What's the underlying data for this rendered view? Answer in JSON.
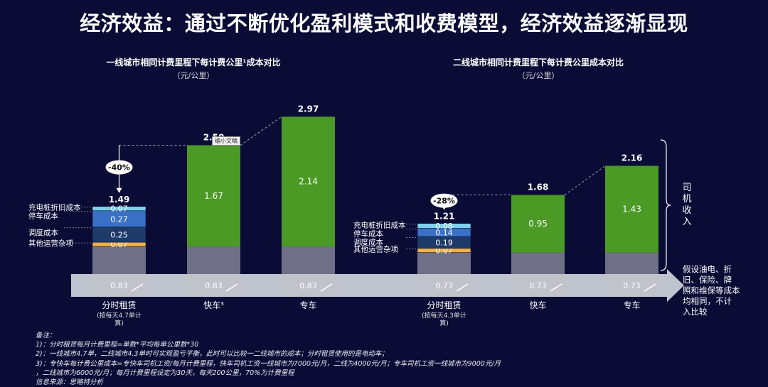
{
  "headline": "经济效益：通过不断优化盈利模式和收费模型，经济效益逐渐显现",
  "colors": {
    "background": "#0a0c36",
    "green": "#4a9a25",
    "charger": "#7ed0ee",
    "parking": "#3a70c6",
    "dispatch": "#1e3a68",
    "misc": "#f0b14a",
    "base": "#c2c2c8",
    "arrow": "#c9cdd6"
  },
  "tooltip": "缩小文稿",
  "chart_data": [
    {
      "type": "bar",
      "title": "一线城市相同计费里程下每计费公里¹成本对比",
      "unit_label": "（元/公里）",
      "ylim": [
        0,
        3.2
      ],
      "base_value": 0.83,
      "categories": [
        "分时租赁",
        "快车³",
        "专车"
      ],
      "category_subtitles": [
        "(按每天4.7单计",
        "算)"
      ],
      "stack_series": [
        {
          "name": "其他运营杂项",
          "value": 0.07,
          "color_key": "misc",
          "label": "0.07"
        },
        {
          "name": "调度成本",
          "value": 0.25,
          "color_key": "dispatch",
          "label": "0.25"
        },
        {
          "name": "停车成本",
          "value": 0.27,
          "color_key": "parking",
          "label": "0.27"
        },
        {
          "name": "充电桩折旧成本",
          "value": 0.07,
          "color_key": "charger",
          "label": "0.07"
        }
      ],
      "rental_total": 1.49,
      "rental_total_label": "1.49",
      "other_bars": [
        {
          "category": "快车³",
          "upper": 1.67,
          "upper_label": "1.67",
          "total": 2.5,
          "total_label": "2.50"
        },
        {
          "category": "专车",
          "upper": 2.14,
          "upper_label": "2.14",
          "total": 2.97,
          "total_label": "2.97"
        }
      ],
      "base_labels": [
        "0.83",
        "0.83",
        "0.83"
      ],
      "reduction_label": "-40%"
    },
    {
      "type": "bar",
      "title": "二线城市相同计费里程下每计费公里成本对比",
      "unit_label": "（元/公里）",
      "ylim": [
        0,
        2.4
      ],
      "base_value": 0.73,
      "categories": [
        "分时租赁",
        "快车",
        "专车"
      ],
      "category_subtitles": [
        "(按每天4.3单计",
        "算)"
      ],
      "stack_series": [
        {
          "name": "其他运营杂项",
          "value": 0.07,
          "color_key": "misc",
          "label": "0.07"
        },
        {
          "name": "调度成本",
          "value": 0.19,
          "color_key": "dispatch",
          "label": "0.19"
        },
        {
          "name": "停车成本",
          "value": 0.14,
          "color_key": "parking",
          "label": "0.14"
        },
        {
          "name": "充电桩折旧成本",
          "value": 0.08,
          "color_key": "charger",
          "label": "0.08"
        }
      ],
      "rental_total": 1.21,
      "rental_total_label": "1.21",
      "other_bars": [
        {
          "category": "快车",
          "upper": 0.95,
          "upper_label": "0.95",
          "total": 1.68,
          "total_label": "1.68"
        },
        {
          "category": "专车",
          "upper": 1.43,
          "upper_label": "1.43",
          "total": 2.16,
          "total_label": "2.16"
        }
      ],
      "base_labels": [
        "0.73",
        "0.73",
        "0.73"
      ],
      "reduction_label": "-28%"
    }
  ],
  "driver_income_label": "司机收入",
  "base_note": "假设油电、折旧、保险、牌照和维保等成本均相同，不计入比较",
  "notes": [
    "备注：",
    "1)：分时租赁每月计费里程=单数*平均每单公里数*30",
    "2)：一线城市4.7单，二线城市4.3单时可实现盈亏平衡，此时可以比较一二线城市的成本；分时租赁使用的是电动车；",
    "3)：专快车每计费公里成本=专快车司机工资/每月计费里程，快车司机工资一线城市为7000元/月，二线为4000元/月；专车司机工资一线城市为9000元/月",
    "，二线城市为6000元/月；每月计费里程设定为30天，每天200公里，70%为计费里程",
    "信息来源：思略特分析"
  ]
}
